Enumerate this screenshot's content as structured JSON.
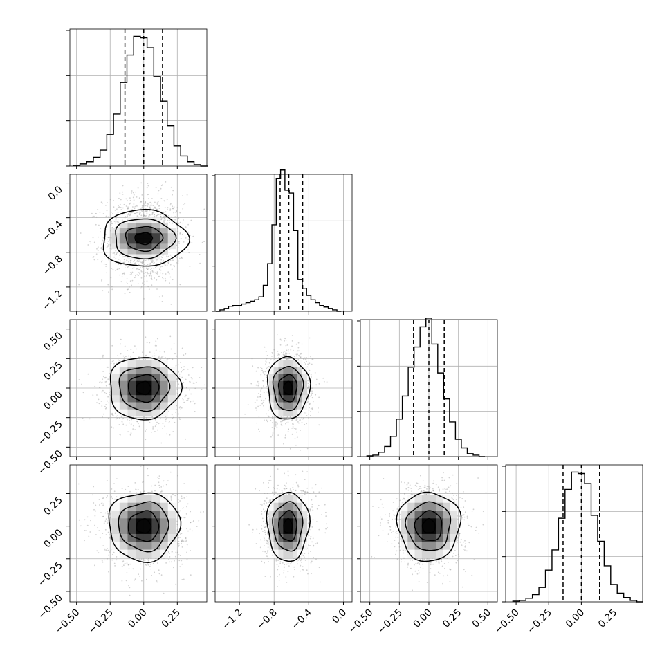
{
  "chart_data": {
    "type": "corner",
    "description_variables": 4,
    "colors": {
      "line": "#000000",
      "grid": "#b0b0b0",
      "scatter": "#9a9a9a",
      "density": "#000000"
    },
    "grid": true,
    "variables": [
      {
        "xlim": [
          -0.55,
          0.47
        ],
        "ylim": [
          -0.55,
          0.63
        ],
        "center": 0.0,
        "sigma": 0.12,
        "quantiles": [
          -0.14,
          0.0,
          0.14
        ],
        "ticks": [
          -0.5,
          -0.25,
          0.0,
          0.25
        ],
        "tick_labels": [
          "−0.50",
          "−0.25",
          "0.00",
          "0.25"
        ],
        "hist_x": [
          -0.5,
          -0.45,
          -0.4,
          -0.35,
          -0.3,
          -0.25,
          -0.2,
          -0.15,
          -0.1,
          -0.05,
          0.0,
          0.05,
          0.1,
          0.15,
          0.2,
          0.25,
          0.3,
          0.35,
          0.4,
          0.45
        ],
        "hist_y": [
          0.005,
          0.015,
          0.03,
          0.06,
          0.11,
          0.22,
          0.36,
          0.58,
          0.77,
          0.9,
          0.89,
          0.82,
          0.62,
          0.45,
          0.28,
          0.14,
          0.07,
          0.03,
          0.01,
          0.0
        ]
      },
      {
        "xlim": [
          -1.48,
          0.1
        ],
        "ylim": [
          -1.48,
          0.1
        ],
        "center": -0.64,
        "sigma": 0.11,
        "quantiles": [
          -0.73,
          -0.63,
          -0.47
        ],
        "ticks": [
          -1.2,
          -0.8,
          -0.4,
          0.0
        ],
        "tick_labels": [
          "−1.2",
          "−0.8",
          "−0.4",
          "0.0"
        ],
        "hist_x": [
          -1.45,
          -1.4,
          -1.35,
          -1.3,
          -1.25,
          -1.2,
          -1.15,
          -1.1,
          -1.05,
          -1.0,
          -0.95,
          -0.9,
          -0.85,
          -0.8,
          -0.75,
          -0.7,
          -0.65,
          -0.6,
          -0.55,
          -0.5,
          -0.45,
          -0.4,
          -0.35,
          -0.3,
          -0.25,
          -0.2,
          -0.15,
          -0.1,
          -0.05
        ],
        "hist_y": [
          0.0,
          0.01,
          0.02,
          0.035,
          0.04,
          0.04,
          0.05,
          0.06,
          0.07,
          0.08,
          0.1,
          0.18,
          0.33,
          0.6,
          0.92,
          0.98,
          0.84,
          0.82,
          0.56,
          0.22,
          0.16,
          0.11,
          0.08,
          0.06,
          0.04,
          0.03,
          0.02,
          0.01,
          0.0
        ]
      },
      {
        "xlim": [
          -0.58,
          0.58
        ],
        "ylim": [
          -0.58,
          0.58
        ],
        "center": 0.0,
        "sigma": 0.12,
        "quantiles": [
          -0.13,
          0.0,
          0.13
        ],
        "ticks": [
          -0.5,
          -0.25,
          0.0,
          0.25,
          0.5
        ],
        "tick_labels": [
          "−0.50",
          "−0.25",
          "0.00",
          "0.25",
          "0.50"
        ],
        "hist_x": [
          -0.5,
          -0.45,
          -0.4,
          -0.35,
          -0.3,
          -0.25,
          -0.2,
          -0.15,
          -0.1,
          -0.05,
          0.0,
          0.05,
          0.1,
          0.15,
          0.2,
          0.25,
          0.3,
          0.35,
          0.4,
          0.45
        ],
        "hist_y": [
          0.005,
          0.01,
          0.03,
          0.07,
          0.14,
          0.26,
          0.42,
          0.62,
          0.76,
          0.9,
          0.96,
          0.78,
          0.58,
          0.4,
          0.24,
          0.12,
          0.06,
          0.02,
          0.01,
          0.0
        ]
      },
      {
        "xlim": [
          -0.58,
          0.47
        ],
        "ylim": [
          -0.58,
          0.47
        ],
        "center": 0.0,
        "sigma": 0.12,
        "quantiles": [
          -0.14,
          0.0,
          0.14
        ],
        "ticks": [
          -0.5,
          -0.25,
          0.0,
          0.25
        ],
        "tick_labels": [
          "−0.50",
          "−0.25",
          "0.00",
          "0.25"
        ],
        "hist_x": [
          -0.5,
          -0.45,
          -0.4,
          -0.35,
          -0.3,
          -0.25,
          -0.2,
          -0.15,
          -0.1,
          -0.05,
          0.0,
          0.05,
          0.1,
          0.15,
          0.2,
          0.25,
          0.3,
          0.35,
          0.4,
          0.45
        ],
        "hist_y": [
          0.005,
          0.01,
          0.025,
          0.05,
          0.1,
          0.22,
          0.36,
          0.58,
          0.78,
          0.9,
          0.89,
          0.82,
          0.6,
          0.42,
          0.25,
          0.12,
          0.06,
          0.03,
          0.01,
          0.0
        ]
      }
    ],
    "hist_ylim": [
      0,
      0.95
    ],
    "contour_levels": [
      0.12,
      0.39,
      0.68,
      0.86
    ],
    "scatter_points_per_panel": 1400,
    "hist2d_bins": 12
  }
}
